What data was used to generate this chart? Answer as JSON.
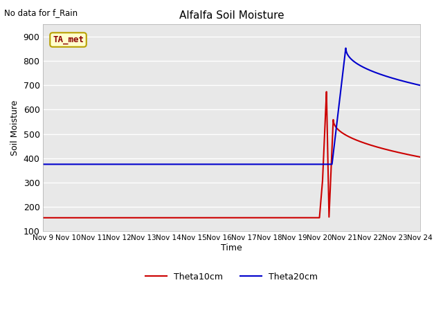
{
  "title": "Alfalfa Soil Moisture",
  "top_left_text": "No data for f_Rain",
  "ylabel": "Soil Moisture",
  "xlabel": "Time",
  "ylim": [
    100,
    950
  ],
  "yticks": [
    100,
    200,
    300,
    400,
    500,
    600,
    700,
    800,
    900
  ],
  "xtick_labels": [
    "Nov 9",
    "Nov 10",
    "Nov 11",
    "Nov 12",
    "Nov 13",
    "Nov 14",
    "Nov 15",
    "Nov 16",
    "Nov 17",
    "Nov 18",
    "Nov 19",
    "Nov 20",
    "Nov 21",
    "Nov 22",
    "Nov 23",
    "Nov 24"
  ],
  "legend_label1": "Theta10cm",
  "legend_label2": "Theta20cm",
  "color_red": "#cc0000",
  "color_blue": "#0000cc",
  "bg_color": "#e8e8e8",
  "inset_label": "TA_met",
  "inset_bg": "#ffffcc",
  "inset_border": "#b8a000"
}
